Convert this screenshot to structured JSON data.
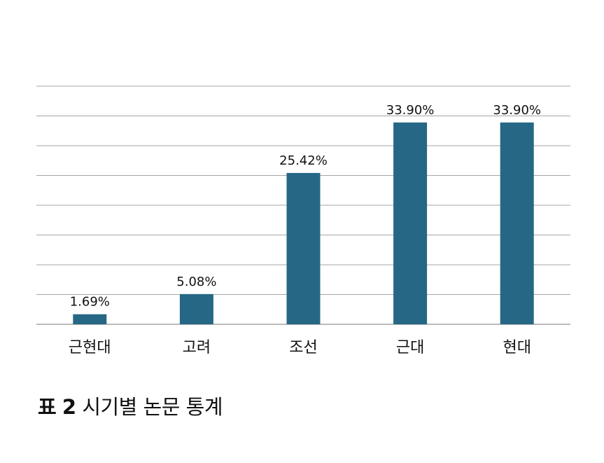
{
  "chart_data": {
    "type": "bar",
    "categories": [
      "근현대",
      "고려",
      "조선",
      "근대",
      "현대"
    ],
    "values": [
      1.69,
      5.08,
      25.42,
      33.9,
      33.9
    ],
    "value_labels": [
      "1.69%",
      "5.08%",
      "25.42%",
      "33.90%",
      "33.90%"
    ],
    "ylim": [
      0,
      40
    ],
    "grid": true,
    "colors": {
      "bar": "#266785",
      "grid": "#a6a6a6",
      "text": "#111111"
    }
  },
  "caption": {
    "table_label": "표",
    "table_number": "2",
    "text": "시기별 논문 통계"
  }
}
